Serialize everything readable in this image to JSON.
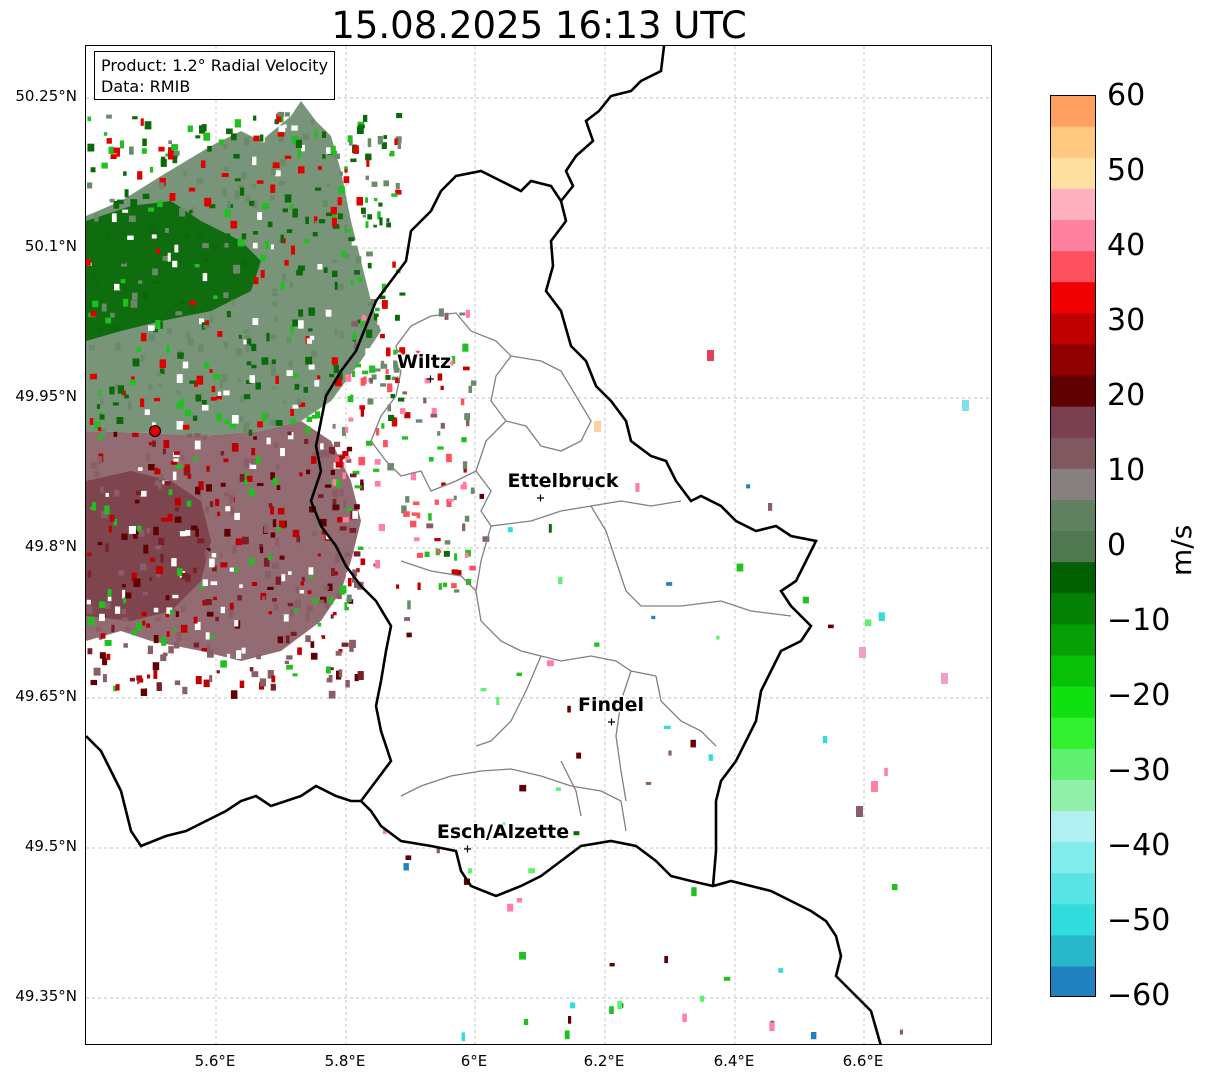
{
  "title": "15.08.2025 16:13 UTC",
  "infobox": {
    "product": "Product: 1.2° Radial Velocity",
    "data": "Data: RMIB"
  },
  "lat_labels": [
    "50.25°N",
    "50.1°N",
    "49.95°N",
    "49.8°N",
    "49.65°N",
    "49.5°N",
    "49.35°N"
  ],
  "lon_labels": [
    "5.6°E",
    "5.8°E",
    "6°E",
    "6.2°E",
    "6.4°E",
    "6.6°E"
  ],
  "cities": [
    {
      "name": "Wiltz"
    },
    {
      "name": "Ettelbruck"
    },
    {
      "name": "Findel"
    },
    {
      "name": "Esch/Alzette"
    }
  ],
  "colorbar": {
    "label": "m/s",
    "ticks": [
      "60",
      "50",
      "40",
      "30",
      "20",
      "10",
      "0",
      "−10",
      "−20",
      "−30",
      "−40",
      "−50",
      "−60"
    ],
    "range": [
      -60,
      60
    ],
    "colors": [
      "#2080c0",
      "#28b8cc",
      "#30dcdc",
      "#58e4e4",
      "#80ecec",
      "#b0f0f0",
      "#90f0a8",
      "#60f070",
      "#30f030",
      "#10e010",
      "#08c008",
      "#06a006",
      "#048004",
      "#026002",
      "#507850",
      "#608060",
      "#888080",
      "#805860",
      "#784050",
      "#600000",
      "#900000",
      "#c00000",
      "#f00000",
      "#ff5060",
      "#ff80a0",
      "#ffb0c0",
      "#ffe0a0",
      "#ffc880",
      "#ffa060"
    ]
  },
  "colors": {
    "border_national": "#000000",
    "border_canton": "#808080",
    "radar_site": "#e00000",
    "grid": "#b0b0b0"
  }
}
